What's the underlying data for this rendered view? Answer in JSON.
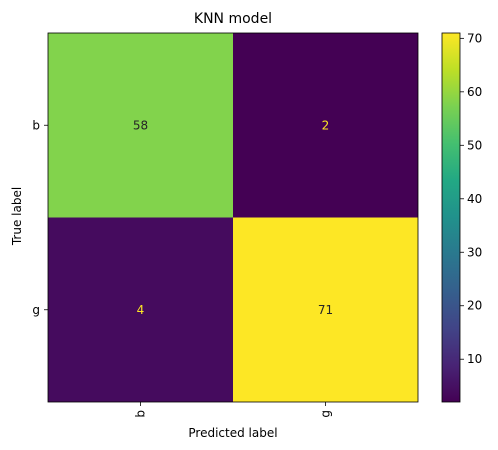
{
  "chart_data": {
    "type": "heatmap",
    "title": "KNN model",
    "xlabel": "Predicted label",
    "ylabel": "True label",
    "x_categories": [
      "b",
      "g"
    ],
    "y_categories": [
      "b",
      "g"
    ],
    "matrix": [
      [
        58,
        2
      ],
      [
        4,
        71
      ]
    ],
    "colormap": "viridis",
    "color_range": [
      2,
      71
    ],
    "colorbar_ticks": [
      10,
      20,
      30,
      40,
      50,
      60,
      70
    ],
    "x_tick_rotation": "vertical",
    "grid": false
  }
}
